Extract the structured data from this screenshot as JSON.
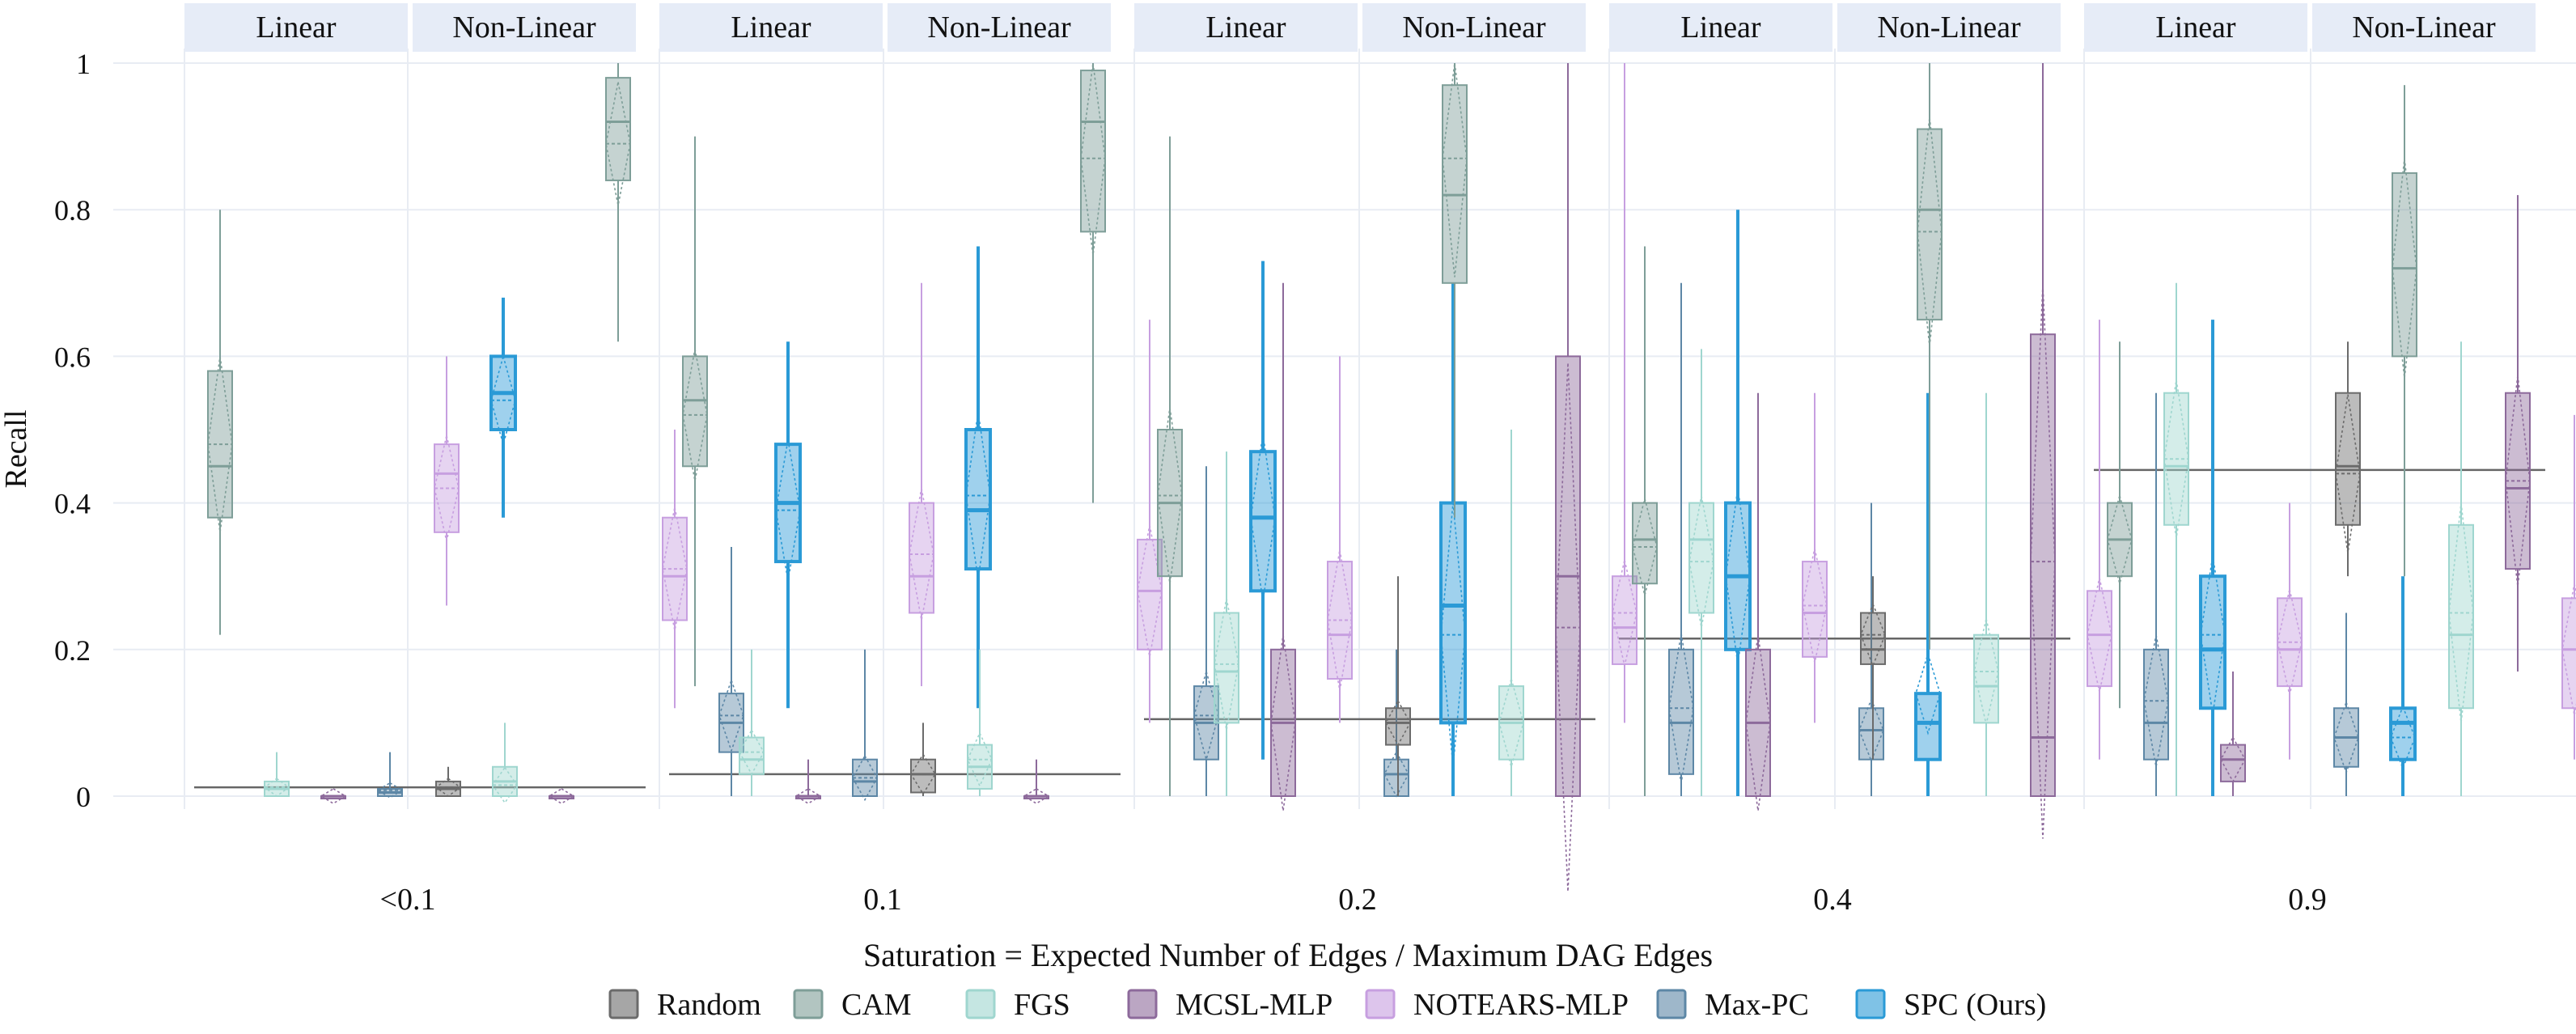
{
  "colors": {
    "Random": "#6b6b6b",
    "CAM": "#7e9e98",
    "FGS": "#9fd6cf",
    "MCSL-MLP": "#8d6a9b",
    "NOTEARS-MLP": "#c79fe0",
    "Max-PC": "#5d87a6",
    "SPC (Ours)": "#2a9ad6",
    "facet_strip": "#e6ecf7",
    "grid": "#e8ecf3"
  },
  "chart_data": {
    "type": "boxplot",
    "xlabel": "Saturation = Expected Number of Edges / Maximum DAG Edges",
    "ylabel": "Recall",
    "ylim": [
      0,
      1
    ],
    "yticks": [
      0,
      0.2,
      0.4,
      0.6,
      0.8,
      1
    ],
    "ytick_labels": [
      "0",
      "0.2",
      "0.4",
      "0.6",
      "0.8",
      "1"
    ],
    "strip_labels": [
      "Linear",
      "Non-Linear"
    ],
    "legend": {
      "position": "bottom",
      "entries": [
        "Random",
        "CAM",
        "FGS",
        "MCSL-MLP",
        "NOTEARS-MLP",
        "Max-PC",
        "SPC (Ours)"
      ]
    },
    "groups": [
      {
        "label": "<0.1",
        "random_baseline": 0.012,
        "linear": [
          {
            "method": "CAM",
            "min": 0.22,
            "q1": 0.38,
            "median": 0.45,
            "q3": 0.58,
            "max": 0.8,
            "mean": 0.48
          },
          {
            "method": "FGS",
            "min": 0.0,
            "q1": 0.0,
            "median": 0.01,
            "q3": 0.02,
            "max": 0.06,
            "mean": 0.012
          },
          {
            "method": "MCSL-MLP",
            "min": 0.0,
            "q1": 0.0,
            "median": 0.0,
            "q3": 0.0,
            "max": 0.0,
            "mean": 0.0
          },
          {
            "method": "Max-PC",
            "min": 0.0,
            "q1": 0.0,
            "median": 0.005,
            "q3": 0.01,
            "max": 0.06,
            "mean": 0.008
          },
          {
            "method": "NOTEARS-MLP",
            "min": 0.26,
            "q1": 0.36,
            "median": 0.44,
            "q3": 0.48,
            "max": 0.6,
            "mean": 0.42
          },
          {
            "method": "SPC (Ours)",
            "min": 0.38,
            "q1": 0.5,
            "median": 0.55,
            "q3": 0.6,
            "max": 0.68,
            "mean": 0.54
          }
        ],
        "nonlinear": [
          {
            "method": "Random",
            "min": 0.0,
            "q1": 0.0,
            "median": 0.01,
            "q3": 0.02,
            "max": 0.04,
            "mean": 0.012
          },
          {
            "method": "FGS",
            "min": 0.0,
            "q1": 0.0,
            "median": 0.02,
            "q3": 0.04,
            "max": 0.1,
            "mean": 0.015
          },
          {
            "method": "MCSL-MLP",
            "min": 0.0,
            "q1": 0.0,
            "median": 0.0,
            "q3": 0.0,
            "max": 0.0,
            "mean": 0.0
          },
          {
            "method": "CAM",
            "min": 0.62,
            "q1": 0.84,
            "median": 0.92,
            "q3": 0.98,
            "max": 1.0,
            "mean": 0.89
          },
          {
            "method": "NOTEARS-MLP",
            "min": 0.12,
            "q1": 0.24,
            "median": 0.3,
            "q3": 0.38,
            "max": 0.5,
            "mean": 0.31
          },
          {
            "method": "Max-PC",
            "min": 0.0,
            "q1": 0.06,
            "median": 0.1,
            "q3": 0.14,
            "max": 0.34,
            "mean": 0.11
          },
          {
            "method": "SPC (Ours)",
            "min": 0.12,
            "q1": 0.32,
            "median": 0.4,
            "q3": 0.48,
            "max": 0.62,
            "mean": 0.39
          }
        ]
      },
      {
        "label": "0.1",
        "random_baseline": 0.03,
        "linear": [
          {
            "method": "CAM",
            "min": 0.15,
            "q1": 0.45,
            "median": 0.54,
            "q3": 0.6,
            "max": 0.9,
            "mean": 0.52
          },
          {
            "method": "FGS",
            "min": 0.0,
            "q1": 0.03,
            "median": 0.05,
            "q3": 0.08,
            "max": 0.2,
            "mean": 0.06
          },
          {
            "method": "MCSL-MLP",
            "min": 0.0,
            "q1": 0.0,
            "median": 0.0,
            "q3": 0.0,
            "max": 0.05,
            "mean": 0.0
          },
          {
            "method": "Max-PC",
            "min": 0.0,
            "q1": 0.0,
            "median": 0.02,
            "q3": 0.05,
            "max": 0.2,
            "mean": 0.025
          },
          {
            "method": "NOTEARS-MLP",
            "min": 0.15,
            "q1": 0.25,
            "median": 0.3,
            "q3": 0.4,
            "max": 0.7,
            "mean": 0.33
          },
          {
            "method": "SPC (Ours)",
            "min": 0.12,
            "q1": 0.31,
            "median": 0.39,
            "q3": 0.5,
            "max": 0.75,
            "mean": 0.41
          }
        ],
        "nonlinear": [
          {
            "method": "Random",
            "min": 0.0,
            "q1": 0.005,
            "median": 0.03,
            "q3": 0.05,
            "max": 0.1,
            "mean": 0.03
          },
          {
            "method": "FGS",
            "min": 0.0,
            "q1": 0.01,
            "median": 0.04,
            "q3": 0.07,
            "max": 0.2,
            "mean": 0.05
          },
          {
            "method": "MCSL-MLP",
            "min": 0.0,
            "q1": 0.0,
            "median": 0.0,
            "q3": 0.0,
            "max": 0.05,
            "mean": 0.0
          },
          {
            "method": "CAM",
            "min": 0.4,
            "q1": 0.77,
            "median": 0.92,
            "q3": 0.99,
            "max": 1.0,
            "mean": 0.87
          },
          {
            "method": "NOTEARS-MLP",
            "min": 0.1,
            "q1": 0.2,
            "median": 0.28,
            "q3": 0.35,
            "max": 0.65,
            "mean": 0.28
          },
          {
            "method": "Max-PC",
            "min": 0.0,
            "q1": 0.05,
            "median": 0.1,
            "q3": 0.15,
            "max": 0.45,
            "mean": 0.11
          },
          {
            "method": "SPC (Ours)",
            "min": 0.05,
            "q1": 0.28,
            "median": 0.38,
            "q3": 0.47,
            "max": 0.73,
            "mean": 0.38
          }
        ]
      },
      {
        "label": "0.2",
        "random_baseline": 0.105,
        "linear": [
          {
            "method": "CAM",
            "min": 0.0,
            "q1": 0.3,
            "median": 0.4,
            "q3": 0.5,
            "max": 0.9,
            "mean": 0.41
          },
          {
            "method": "FGS",
            "min": 0.0,
            "q1": 0.1,
            "median": 0.17,
            "q3": 0.25,
            "max": 0.47,
            "mean": 0.18
          },
          {
            "method": "MCSL-MLP",
            "min": 0.0,
            "q1": 0.0,
            "median": 0.1,
            "q3": 0.2,
            "max": 0.7,
            "mean": 0.1
          },
          {
            "method": "NOTEARS-MLP",
            "min": 0.1,
            "q1": 0.16,
            "median": 0.22,
            "q3": 0.32,
            "max": 0.6,
            "mean": 0.24
          },
          {
            "method": "Max-PC",
            "min": 0.0,
            "q1": 0.0,
            "median": 0.03,
            "q3": 0.05,
            "max": 0.2,
            "mean": 0.03
          },
          {
            "method": "SPC (Ours)",
            "min": 0.0,
            "q1": 0.1,
            "median": 0.26,
            "q3": 0.4,
            "max": 0.7,
            "mean": 0.22
          }
        ],
        "nonlinear": [
          {
            "method": "Random",
            "min": 0.0,
            "q1": 0.07,
            "median": 0.1,
            "q3": 0.12,
            "max": 0.3,
            "mean": 0.1
          },
          {
            "method": "CAM",
            "min": 0.38,
            "q1": 0.7,
            "median": 0.82,
            "q3": 0.97,
            "max": 1.0,
            "mean": 0.87
          },
          {
            "method": "FGS",
            "min": 0.0,
            "q1": 0.05,
            "median": 0.1,
            "q3": 0.15,
            "max": 0.5,
            "mean": 0.1
          },
          {
            "method": "MCSL-MLP",
            "min": 0.0,
            "q1": 0.0,
            "median": 0.3,
            "q3": 0.6,
            "max": 1.0,
            "mean": 0.23
          },
          {
            "method": "NOTEARS-MLP",
            "min": 0.1,
            "q1": 0.18,
            "median": 0.23,
            "q3": 0.3,
            "max": 1.0,
            "mean": 0.25
          },
          {
            "method": "Max-PC",
            "min": 0.0,
            "q1": 0.03,
            "median": 0.1,
            "q3": 0.2,
            "max": 0.7,
            "mean": 0.12
          },
          {
            "method": "SPC (Ours)",
            "min": 0.0,
            "q1": 0.2,
            "median": 0.3,
            "q3": 0.4,
            "max": 0.8,
            "mean": 0.3
          }
        ]
      },
      {
        "label": "0.4",
        "random_baseline": 0.215,
        "linear": [
          {
            "method": "CAM",
            "min": 0.0,
            "q1": 0.29,
            "median": 0.35,
            "q3": 0.4,
            "max": 0.75,
            "mean": 0.34
          },
          {
            "method": "FGS",
            "min": 0.0,
            "q1": 0.25,
            "median": 0.35,
            "q3": 0.4,
            "max": 0.61,
            "mean": 0.32
          },
          {
            "method": "MCSL-MLP",
            "min": 0.0,
            "q1": 0.0,
            "median": 0.1,
            "q3": 0.2,
            "max": 0.55,
            "mean": 0.1
          },
          {
            "method": "NOTEARS-MLP",
            "min": 0.1,
            "q1": 0.19,
            "median": 0.25,
            "q3": 0.32,
            "max": 0.55,
            "mean": 0.26
          },
          {
            "method": "Max-PC",
            "min": 0.0,
            "q1": 0.05,
            "median": 0.09,
            "q3": 0.12,
            "max": 0.4,
            "mean": 0.09
          },
          {
            "method": "SPC (Ours)",
            "min": 0.0,
            "q1": 0.05,
            "median": 0.1,
            "q3": 0.14,
            "max": 0.55,
            "mean": 0.14
          }
        ],
        "nonlinear": [
          {
            "method": "Random",
            "min": 0.05,
            "q1": 0.18,
            "median": 0.2,
            "q3": 0.25,
            "max": 0.3,
            "mean": 0.22
          },
          {
            "method": "CAM",
            "min": 0.2,
            "q1": 0.65,
            "median": 0.8,
            "q3": 0.91,
            "max": 1.0,
            "mean": 0.77
          },
          {
            "method": "FGS",
            "min": 0.0,
            "q1": 0.1,
            "median": 0.15,
            "q3": 0.22,
            "max": 0.55,
            "mean": 0.17
          },
          {
            "method": "MCSL-MLP",
            "min": 0.0,
            "q1": 0.0,
            "median": 0.08,
            "q3": 0.63,
            "max": 1.0,
            "mean": 0.32
          },
          {
            "method": "NOTEARS-MLP",
            "min": 0.05,
            "q1": 0.15,
            "median": 0.22,
            "q3": 0.28,
            "max": 0.65,
            "mean": 0.22
          },
          {
            "method": "Max-PC",
            "min": 0.0,
            "q1": 0.05,
            "median": 0.1,
            "q3": 0.2,
            "max": 0.55,
            "mean": 0.13
          },
          {
            "method": "SPC (Ours)",
            "min": 0.0,
            "q1": 0.12,
            "median": 0.2,
            "q3": 0.3,
            "max": 0.65,
            "mean": 0.22
          }
        ]
      },
      {
        "label": "0.9",
        "random_baseline": 0.445,
        "linear": [
          {
            "method": "CAM",
            "min": 0.12,
            "q1": 0.3,
            "median": 0.35,
            "q3": 0.4,
            "max": 0.62,
            "mean": 0.35
          },
          {
            "method": "FGS",
            "min": 0.0,
            "q1": 0.37,
            "median": 0.45,
            "q3": 0.55,
            "max": 0.7,
            "mean": 0.46
          },
          {
            "method": "MCSL-MLP",
            "min": 0.0,
            "q1": 0.02,
            "median": 0.05,
            "q3": 0.07,
            "max": 0.17,
            "mean": 0.05
          },
          {
            "method": "NOTEARS-MLP",
            "min": 0.05,
            "q1": 0.15,
            "median": 0.2,
            "q3": 0.27,
            "max": 0.4,
            "mean": 0.21
          },
          {
            "method": "Max-PC",
            "min": 0.0,
            "q1": 0.04,
            "median": 0.08,
            "q3": 0.12,
            "max": 0.25,
            "mean": 0.08
          },
          {
            "method": "SPC (Ours)",
            "min": 0.0,
            "q1": 0.05,
            "median": 0.1,
            "q3": 0.12,
            "max": 0.3,
            "mean": 0.08
          }
        ],
        "nonlinear": [
          {
            "method": "Random",
            "min": 0.3,
            "q1": 0.37,
            "median": 0.45,
            "q3": 0.55,
            "max": 0.62,
            "mean": 0.44
          },
          {
            "method": "CAM",
            "min": 0.3,
            "q1": 0.6,
            "median": 0.72,
            "q3": 0.85,
            "max": 0.97,
            "mean": 0.72
          },
          {
            "method": "FGS",
            "min": 0.0,
            "q1": 0.12,
            "median": 0.22,
            "q3": 0.37,
            "max": 0.62,
            "mean": 0.25
          },
          {
            "method": "MCSL-MLP",
            "min": 0.17,
            "q1": 0.31,
            "median": 0.42,
            "q3": 0.55,
            "max": 0.82,
            "mean": 0.43
          },
          {
            "method": "NOTEARS-MLP",
            "min": 0.05,
            "q1": 0.12,
            "median": 0.2,
            "q3": 0.27,
            "max": 0.52,
            "mean": 0.2
          },
          {
            "method": "Max-PC",
            "min": 0.0,
            "q1": 0.07,
            "median": 0.12,
            "q3": 0.2,
            "max": 0.45,
            "mean": 0.14
          },
          {
            "method": "SPC (Ours)",
            "min": 0.0,
            "q1": 0.07,
            "median": 0.12,
            "q3": 0.2,
            "max": 0.42,
            "mean": 0.13
          }
        ]
      }
    ]
  }
}
